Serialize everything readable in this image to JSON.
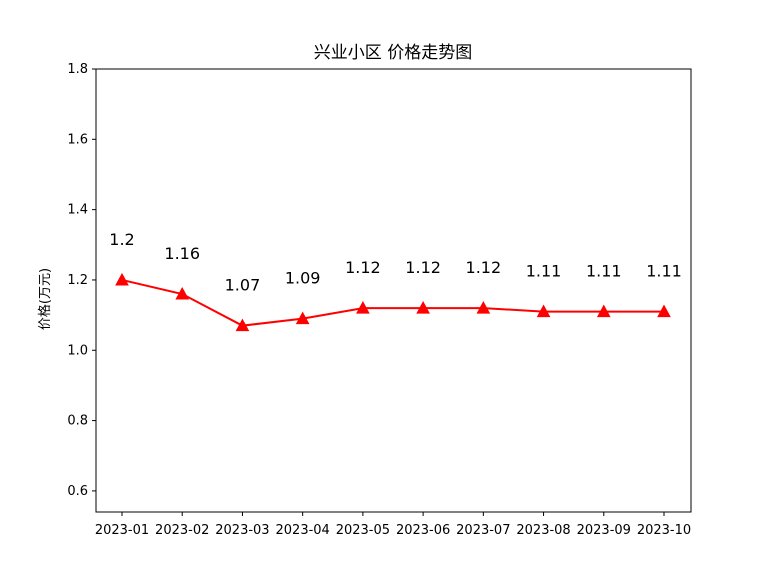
{
  "chart_data": {
    "type": "line",
    "title": "兴业小区 价格走势图",
    "xlabel": "",
    "ylabel": "价格(万元)",
    "categories": [
      "2023-01",
      "2023-02",
      "2023-03",
      "2023-04",
      "2023-05",
      "2023-06",
      "2023-07",
      "2023-08",
      "2023-09",
      "2023-10"
    ],
    "series": [
      {
        "values": [
          1.2,
          1.16,
          1.07,
          1.09,
          1.12,
          1.12,
          1.12,
          1.11,
          1.11,
          1.11
        ],
        "labels": [
          "1.2",
          "1.16",
          "1.07",
          "1.09",
          "1.12",
          "1.12",
          "1.12",
          "1.11",
          "1.11",
          "1.11"
        ],
        "color": "#ff0000",
        "marker": "triangle-up"
      }
    ],
    "ylim": [
      0.54,
      1.8
    ],
    "yticks": [
      0.6,
      0.8,
      1.0,
      1.2,
      1.4,
      1.6,
      1.8
    ],
    "ytick_labels": [
      "0.6",
      "0.8",
      "1.0",
      "1.2",
      "1.4",
      "1.6",
      "1.8"
    ],
    "grid": false,
    "legend": "none"
  }
}
